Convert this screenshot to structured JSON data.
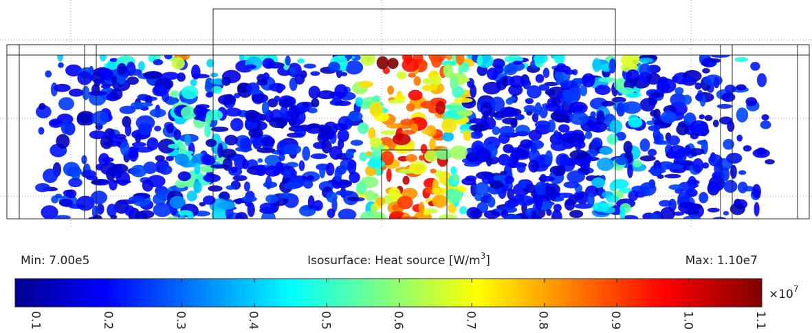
{
  "plot": {
    "colorbar": {
      "min_label": "Min: 7.00e5",
      "max_label": "Max: 1.10e7",
      "title": "Isosurface: Heat source [W/m",
      "title_superscript": "3",
      "title_end": "]",
      "multiplier": "×10",
      "multiplier_exponent": "7",
      "range": [
        0.07,
        1.1
      ],
      "ticks": [
        0.1,
        0.2,
        0.3,
        0.4,
        0.5,
        0.6,
        0.7,
        0.8,
        0.9,
        {
          "value": 1,
          "label": "1.0"
        },
        1.1
      ]
    }
  }
}
